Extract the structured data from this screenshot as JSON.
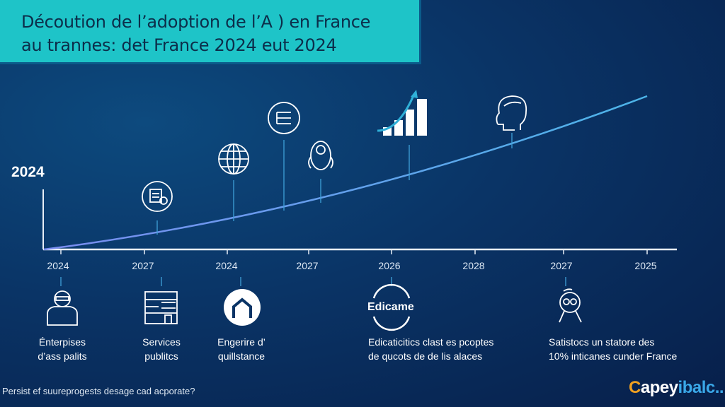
{
  "title": {
    "line1": "Décoution de l’adoption de l’A ) en France",
    "line2": "au trannes: det France 2024 eut 2024"
  },
  "axis_year_label": "2024",
  "ticks": [
    "2024",
    "2027",
    "2024",
    "2027",
    "2026",
    "2028",
    "2027",
    "2025"
  ],
  "curve_icons": [
    "certificate-icon",
    "globe-icon",
    "menu-circle-icon",
    "ai-head-icon",
    "growth-chart-icon",
    "human-head-icon"
  ],
  "bottom_items": [
    {
      "icon": "worker-icon",
      "line1": "Énterpises",
      "line2": "d’ass palits"
    },
    {
      "icon": "building-icon",
      "line1": "Services",
      "line2": "publitcs"
    },
    {
      "icon": "home-circle-icon",
      "line1": "Engerire d’",
      "line2": "quillstance"
    },
    {
      "icon": "edicame-badge",
      "badge": "Edicame",
      "line1": "Edicaticitics clast es pcoptes",
      "line2": "de qucots de de lis alaces"
    },
    {
      "icon": "robot-icon",
      "line1": "Satistocs un statore des",
      "line2": "10% inticanes cunder France"
    }
  ],
  "footer": "Persist ef suureprogests desage cad acporate?",
  "logo": {
    "first": "C",
    "mid": "apey",
    "last": "ibalc.."
  },
  "colors": {
    "title_bg": "#1ec4c8",
    "background": "#0a3466",
    "curve": "#4aa8e0"
  }
}
